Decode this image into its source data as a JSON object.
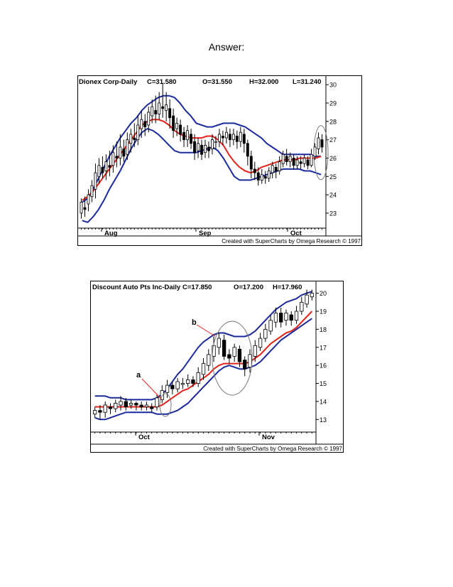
{
  "page": {
    "heading": "Answer:"
  },
  "chart_data": [
    {
      "type": "candlestick",
      "title": "Dionex Corp-Daily",
      "readout": {
        "close": "C=31.580",
        "open": "O=31.550",
        "high": "H=32.000",
        "low": "L=31.240"
      },
      "x_labels": [
        "Aug",
        "Sep",
        "Oct"
      ],
      "y_ticks": [
        30,
        29,
        28,
        27,
        26,
        25,
        24,
        23
      ],
      "ylim": [
        22.3,
        30.2
      ],
      "credit": "Created with SuperCharts by Omega Research © 1997",
      "colors": {
        "band": "#1c2a9c",
        "average": "#e2231a",
        "candle": "#000000"
      },
      "candles": [
        [
          23.0,
          23.6,
          22.7,
          23.8
        ],
        [
          23.3,
          23.2,
          22.8,
          23.9
        ],
        [
          23.5,
          24.0,
          23.1,
          24.3
        ],
        [
          23.9,
          24.5,
          23.6,
          24.8
        ],
        [
          24.3,
          25.2,
          23.8,
          25.7
        ],
        [
          25.0,
          25.6,
          24.6,
          26.0
        ],
        [
          25.5,
          25.2,
          24.9,
          26.1
        ],
        [
          25.3,
          25.8,
          24.8,
          26.2
        ],
        [
          25.6,
          25.5,
          25.0,
          26.4
        ],
        [
          25.6,
          26.3,
          25.2,
          26.7
        ],
        [
          26.1,
          26.0,
          25.5,
          26.9
        ],
        [
          26.0,
          26.6,
          25.6,
          27.3
        ],
        [
          26.5,
          26.1,
          25.8,
          27.0
        ],
        [
          26.2,
          27.0,
          25.9,
          27.4
        ],
        [
          26.8,
          27.3,
          26.3,
          27.6
        ],
        [
          27.1,
          27.0,
          26.6,
          27.9
        ],
        [
          27.0,
          27.8,
          26.7,
          28.3
        ],
        [
          27.6,
          28.1,
          27.1,
          28.6
        ],
        [
          28.0,
          27.7,
          27.2,
          28.4
        ],
        [
          27.8,
          28.5,
          27.4,
          28.8
        ],
        [
          28.3,
          28.8,
          27.9,
          29.2
        ],
        [
          28.6,
          28.4,
          27.9,
          29.4
        ],
        [
          28.4,
          29.0,
          28.1,
          29.6
        ],
        [
          28.8,
          28.7,
          28.2,
          30.1
        ],
        [
          28.6,
          28.9,
          28.0,
          29.6
        ],
        [
          28.7,
          28.2,
          27.6,
          29.2
        ],
        [
          28.3,
          27.5,
          27.1,
          28.7
        ],
        [
          27.6,
          27.9,
          27.2,
          28.2
        ],
        [
          27.8,
          27.3,
          26.9,
          28.1
        ],
        [
          27.4,
          27.0,
          26.6,
          27.7
        ],
        [
          27.0,
          27.5,
          26.6,
          27.8
        ],
        [
          27.3,
          26.8,
          26.5,
          27.6
        ],
        [
          26.9,
          26.3,
          25.9,
          27.3
        ],
        [
          26.4,
          26.8,
          26.0,
          27.1
        ],
        [
          26.7,
          26.2,
          25.9,
          27.0
        ],
        [
          26.3,
          26.7,
          26.0,
          27.0
        ],
        [
          26.6,
          26.4,
          26.0,
          26.9
        ],
        [
          26.5,
          27.0,
          26.2,
          27.3
        ],
        [
          26.9,
          26.9,
          26.5,
          27.2
        ],
        [
          26.9,
          27.3,
          26.6,
          27.6
        ],
        [
          27.2,
          27.1,
          26.7,
          27.5
        ],
        [
          27.1,
          27.4,
          26.8,
          27.7
        ],
        [
          27.3,
          27.0,
          26.6,
          27.6
        ],
        [
          27.0,
          27.3,
          26.7,
          27.6
        ],
        [
          27.2,
          26.9,
          26.5,
          27.5
        ],
        [
          26.9,
          27.4,
          26.6,
          27.7
        ],
        [
          27.3,
          26.8,
          26.3,
          27.6
        ],
        [
          26.8,
          26.1,
          25.6,
          27.0
        ],
        [
          26.1,
          25.4,
          24.9,
          26.4
        ],
        [
          25.4,
          25.2,
          24.8,
          25.8
        ],
        [
          25.2,
          24.8,
          24.5,
          25.5
        ],
        [
          24.8,
          25.1,
          24.6,
          25.4
        ],
        [
          25.0,
          24.9,
          24.6,
          25.3
        ],
        [
          24.9,
          25.3,
          24.7,
          25.5
        ],
        [
          25.2,
          25.6,
          24.9,
          25.8
        ],
        [
          25.5,
          25.3,
          24.9,
          25.7
        ],
        [
          25.3,
          25.8,
          25.1,
          26.1
        ],
        [
          25.7,
          26.2,
          25.5,
          26.4
        ],
        [
          26.1,
          25.8,
          25.6,
          26.5
        ],
        [
          25.8,
          26.1,
          25.5,
          26.3
        ],
        [
          26.0,
          25.6,
          25.4,
          26.2
        ],
        [
          25.6,
          25.9,
          25.4,
          26.1
        ],
        [
          25.8,
          25.7,
          25.4,
          26.1
        ],
        [
          25.7,
          26.0,
          25.5,
          26.2
        ],
        [
          25.9,
          25.6,
          25.4,
          26.1
        ],
        [
          25.6,
          26.2,
          25.5,
          26.5
        ],
        [
          26.1,
          26.6,
          25.9,
          26.8
        ],
        [
          26.5,
          27.1,
          26.2,
          27.4
        ],
        [
          27.0,
          26.6,
          26.3,
          27.3
        ]
      ],
      "upper_band": [
        23.6,
        23.8,
        24.3,
        24.9,
        25.5,
        26.1,
        26.6,
        27.1,
        27.5,
        27.9,
        28.2,
        28.6,
        28.9,
        29.1,
        29.3,
        29.4,
        29.4,
        29.3,
        29.0,
        28.6,
        28.3,
        27.9,
        27.8,
        27.7,
        27.7,
        27.8,
        27.9,
        27.9,
        27.9,
        27.8,
        27.7,
        27.5,
        27.3,
        27.1,
        26.8,
        26.6,
        26.4,
        26.2,
        26.2,
        26.2,
        26.2,
        26.2,
        26.2,
        26.1,
        26.1
      ],
      "average": [
        23.7,
        23.9,
        24.2,
        24.6,
        25.0,
        25.4,
        25.8,
        26.2,
        26.6,
        27.0,
        27.4,
        27.8,
        28.0,
        28.1,
        28.1,
        28.0,
        27.8,
        27.5,
        27.3,
        27.2,
        27.1,
        27.1,
        27.1,
        27.2,
        27.2,
        27.0,
        26.7,
        26.2,
        25.8,
        25.5,
        25.3,
        25.2,
        25.3,
        25.5,
        25.6,
        25.7,
        25.8,
        25.9,
        25.9,
        25.9,
        26.0,
        26.0,
        26.0,
        26.0,
        26.1
      ],
      "lower_band": [
        22.6,
        22.5,
        22.8,
        23.2,
        23.7,
        24.3,
        24.8,
        25.3,
        25.9,
        26.5,
        27.0,
        27.4,
        27.6,
        27.5,
        27.3,
        27.0,
        26.7,
        26.4,
        26.3,
        26.3,
        26.3,
        26.3,
        26.4,
        26.5,
        26.6,
        26.4,
        26.0,
        25.5,
        25.0,
        24.8,
        24.8,
        24.8,
        24.9,
        25.0,
        25.1,
        25.2,
        25.3,
        25.4,
        25.4,
        25.4,
        25.4,
        25.3,
        25.3,
        25.2,
        25.1
      ],
      "circle_marks": 1
    },
    {
      "type": "candlestick",
      "title": "Discount Auto Pts Inc-Daily",
      "readout": {
        "close": "C=17.850",
        "open": "O=17.200",
        "high": "H=17.960"
      },
      "x_labels": [
        "Oct",
        "Nov"
      ],
      "y_ticks": [
        20,
        19,
        18,
        17,
        16,
        15,
        14,
        13
      ],
      "ylim": [
        12.5,
        20.3
      ],
      "credit": "Created with SuperCharts by Omega Research © 1997",
      "colors": {
        "band": "#1c2a9c",
        "average": "#e2231a",
        "candle": "#000000"
      },
      "annotations": [
        "a",
        "b"
      ],
      "candles": [
        [
          13.3,
          13.5,
          13.1,
          13.7
        ],
        [
          13.5,
          13.4,
          13.0,
          13.8
        ],
        [
          13.4,
          13.8,
          13.1,
          14.0
        ],
        [
          13.7,
          13.6,
          13.3,
          13.9
        ],
        [
          13.6,
          13.9,
          13.4,
          14.1
        ],
        [
          13.8,
          14.0,
          13.5,
          14.3
        ],
        [
          14.0,
          13.7,
          13.5,
          14.2
        ],
        [
          13.8,
          13.9,
          13.6,
          14.1
        ],
        [
          13.9,
          13.8,
          13.5,
          14.0
        ],
        [
          13.8,
          13.7,
          13.5,
          14.0
        ],
        [
          13.7,
          13.8,
          13.5,
          14.0
        ],
        [
          13.7,
          13.6,
          13.4,
          13.9
        ],
        [
          13.7,
          14.2,
          13.5,
          14.4
        ],
        [
          14.1,
          14.6,
          13.9,
          14.9
        ],
        [
          14.5,
          14.9,
          14.2,
          15.2
        ],
        [
          14.9,
          14.7,
          14.4,
          15.1
        ],
        [
          14.7,
          15.1,
          14.5,
          15.3
        ],
        [
          15.0,
          15.0,
          14.7,
          15.3
        ],
        [
          15.0,
          15.2,
          14.8,
          15.5
        ],
        [
          15.2,
          15.0,
          14.8,
          15.4
        ],
        [
          15.0,
          15.6,
          14.8,
          15.9
        ],
        [
          15.5,
          16.1,
          15.2,
          16.4
        ],
        [
          16.0,
          16.6,
          15.7,
          16.9
        ],
        [
          16.5,
          17.1,
          16.2,
          17.6
        ],
        [
          17.0,
          17.5,
          16.6,
          17.8
        ],
        [
          17.4,
          16.5,
          16.3,
          17.7
        ],
        [
          16.6,
          16.4,
          16.1,
          16.9
        ],
        [
          16.5,
          17.0,
          16.2,
          17.2
        ],
        [
          16.9,
          16.2,
          15.9,
          17.1
        ],
        [
          16.3,
          15.8,
          15.4,
          16.5
        ],
        [
          15.9,
          16.6,
          15.6,
          16.9
        ],
        [
          16.5,
          17.1,
          16.2,
          17.4
        ],
        [
          17.0,
          17.5,
          16.8,
          17.8
        ],
        [
          17.5,
          18.0,
          17.3,
          18.3
        ],
        [
          17.9,
          18.5,
          17.7,
          18.8
        ],
        [
          18.4,
          18.9,
          18.1,
          19.2
        ],
        [
          18.9,
          18.4,
          18.1,
          19.2
        ],
        [
          18.5,
          18.9,
          18.2,
          19.1
        ],
        [
          18.8,
          18.5,
          18.2,
          19.0
        ],
        [
          18.5,
          19.0,
          18.3,
          19.3
        ],
        [
          19.0,
          19.5,
          18.8,
          19.8
        ],
        [
          19.4,
          19.9,
          19.2,
          20.2
        ],
        [
          19.8,
          20.0,
          19.6,
          20.2
        ]
      ],
      "upper_band": [
        14.3,
        14.3,
        14.3,
        14.2,
        14.2,
        14.2,
        14.1,
        14.1,
        14.1,
        14.1,
        14.1,
        14.1,
        14.2,
        14.4,
        14.7,
        15.1,
        15.5,
        15.8,
        16.2,
        16.6,
        17.0,
        17.3,
        17.5,
        17.7,
        17.8,
        17.8,
        17.7,
        17.6,
        17.6,
        17.6,
        17.7,
        17.9,
        18.2,
        18.5,
        18.8,
        19.1,
        19.3,
        19.5,
        19.6,
        19.7,
        19.9,
        20.0,
        20.1
      ],
      "average": [
        13.7,
        13.7,
        13.7,
        13.7,
        13.7,
        13.7,
        13.7,
        13.7,
        13.7,
        13.7,
        13.7,
        13.7,
        13.7,
        13.8,
        14.0,
        14.2,
        14.4,
        14.6,
        14.7,
        14.9,
        15.1,
        15.3,
        15.5,
        15.8,
        16.0,
        16.1,
        16.1,
        16.1,
        16.1,
        16.1,
        16.2,
        16.4,
        16.6,
        16.9,
        17.2,
        17.4,
        17.6,
        17.8,
        17.9,
        18.1,
        18.4,
        18.7,
        19.0
      ],
      "lower_band": [
        13.1,
        13.0,
        13.0,
        13.1,
        13.2,
        13.3,
        13.4,
        13.4,
        13.4,
        13.4,
        13.4,
        13.4,
        13.3,
        13.3,
        13.3,
        13.4,
        13.5,
        13.7,
        13.9,
        14.2,
        14.5,
        14.8,
        15.1,
        15.4,
        15.7,
        15.9,
        16.0,
        15.9,
        15.8,
        15.8,
        15.9,
        16.0,
        16.2,
        16.5,
        16.8,
        17.1,
        17.4,
        17.6,
        17.8,
        18.0,
        18.2,
        18.4,
        18.6
      ]
    }
  ]
}
